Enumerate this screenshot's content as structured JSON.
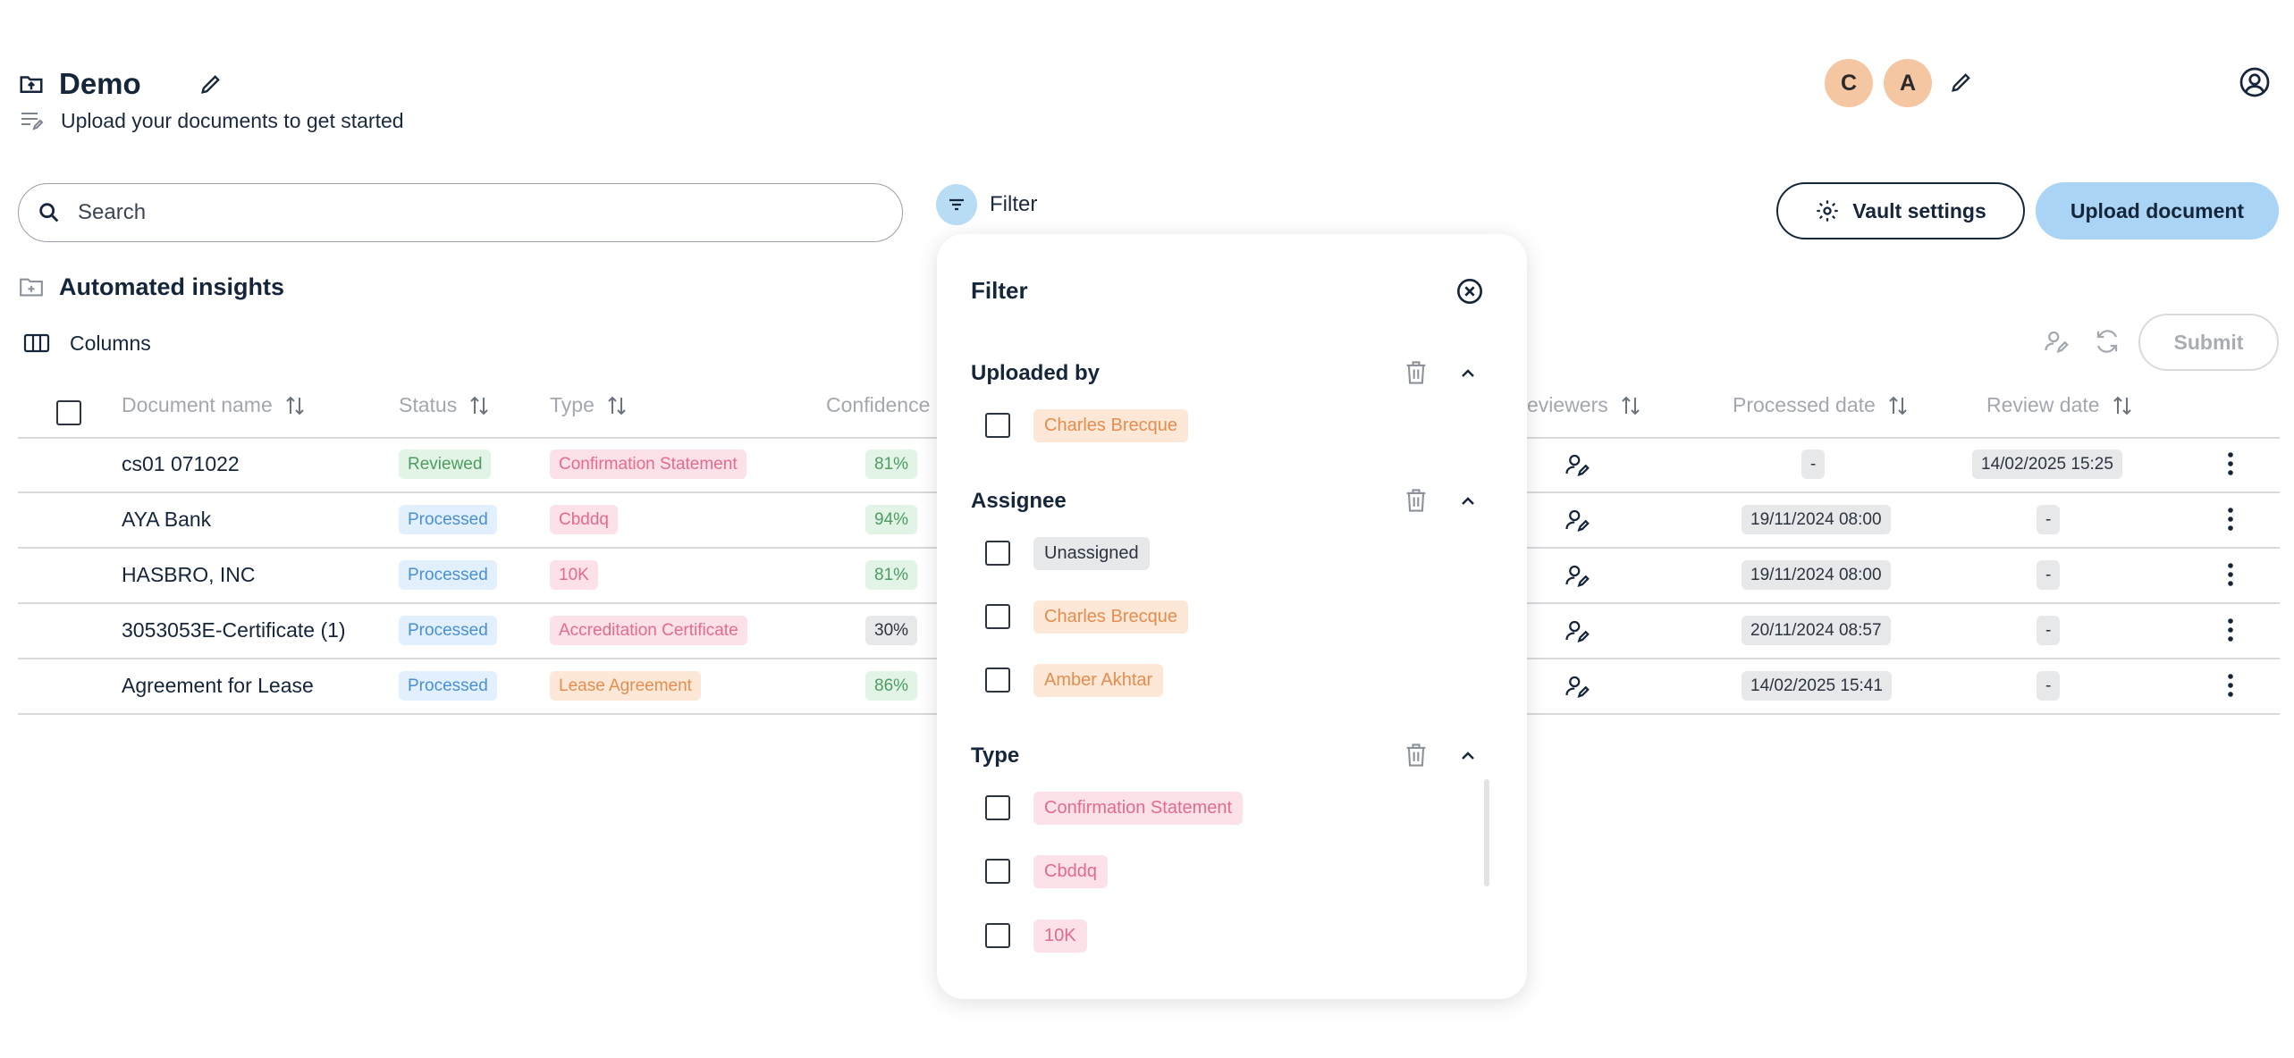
{
  "header": {
    "title": "Demo",
    "subtitle": "Upload your documents to get started",
    "avatars": [
      "C",
      "A"
    ]
  },
  "search": {
    "placeholder": "Search"
  },
  "filter_button": {
    "label": "Filter"
  },
  "actions": {
    "vault_settings": "Vault settings",
    "upload_document": "Upload document"
  },
  "section": {
    "title": "Automated insights"
  },
  "columns_button": {
    "label": "Columns"
  },
  "submit_button": {
    "label": "Submit"
  },
  "table": {
    "columns": [
      "Document name",
      "Status",
      "Type",
      "Confidence",
      "eviewers",
      "Processed date",
      "Review date"
    ],
    "rows": [
      {
        "name": "cs01 071022",
        "status": "Reviewed",
        "type": "Confirmation Statement",
        "confidence": "81%",
        "processed": "-",
        "review": "14/02/2025 15:25"
      },
      {
        "name": "AYA Bank",
        "status": "Processed",
        "type": "Cbddq",
        "confidence": "94%",
        "processed": "19/11/2024 08:00",
        "review": "-"
      },
      {
        "name": "HASBRO, INC",
        "status": "Processed",
        "type": "10K",
        "confidence": "81%",
        "processed": "19/11/2024 08:00",
        "review": "-"
      },
      {
        "name": "3053053E-Certificate (1)",
        "status": "Processed",
        "type": "Accreditation Certificate",
        "confidence": "30%",
        "processed": "20/11/2024 08:57",
        "review": "-"
      },
      {
        "name": "Agreement for Lease",
        "status": "Processed",
        "type": "Lease Agreement",
        "confidence": "86%",
        "processed": "14/02/2025 15:41",
        "review": "-"
      }
    ]
  },
  "filter_panel": {
    "title": "Filter",
    "groups": [
      {
        "title": "Uploaded by",
        "options": [
          "Charles Brecque"
        ]
      },
      {
        "title": "Assignee",
        "options": [
          "Unassigned",
          "Charles Brecque",
          "Amber Akhtar"
        ]
      },
      {
        "title": "Type",
        "options": [
          "Confirmation Statement",
          "Cbddq",
          "10K"
        ]
      }
    ]
  },
  "colors": {
    "primary": "#a9d4f5",
    "text": "#15253a",
    "avatar": "#f4c6a2"
  }
}
